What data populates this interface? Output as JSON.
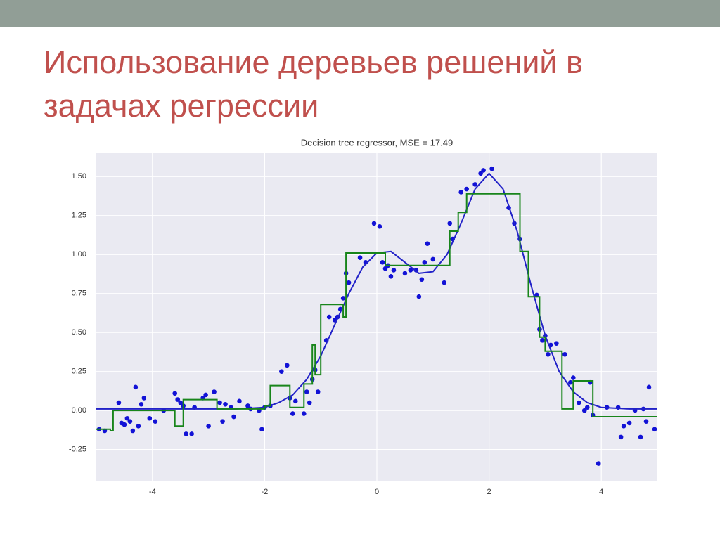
{
  "slide": {
    "title": "Использование деревьев решений в задачах регрессии"
  },
  "chart_data": {
    "type": "scatter",
    "title": "Decision tree regressor, MSE = 17.49",
    "xlim": [
      -5,
      5
    ],
    "ylim": [
      -0.45,
      1.65
    ],
    "xticks": [
      -4,
      -2,
      0,
      2,
      4
    ],
    "yticks": [
      -0.25,
      {
        "value": 0,
        "label": "0.00"
      },
      0.25,
      {
        "value": 0.5,
        "label": "0.50"
      },
      0.75,
      {
        "value": 1,
        "label": "1.00"
      },
      1.25,
      {
        "value": 1.5,
        "label": "1.50"
      }
    ],
    "grid": true,
    "background": "#eaeaf2",
    "series": [
      {
        "type": "scatter",
        "color": "#1212d6",
        "x": [
          -4.95,
          -4.85,
          -4.6,
          -4.55,
          -4.5,
          -4.45,
          -4.4,
          -4.35,
          -4.3,
          -4.25,
          -4.2,
          -4.15,
          -4.05,
          -3.95,
          -3.8,
          -3.6,
          -3.55,
          -3.5,
          -3.45,
          -3.4,
          -3.3,
          -3.25,
          -3.1,
          -3.05,
          -3.0,
          -2.9,
          -2.8,
          -2.75,
          -2.7,
          -2.6,
          -2.55,
          -2.45,
          -2.3,
          -2.25,
          -2.1,
          -2.05,
          -2.0,
          -1.9,
          -1.7,
          -1.6,
          -1.55,
          -1.5,
          -1.45,
          -1.3,
          -1.25,
          -1.2,
          -1.15,
          -1.1,
          -1.05,
          -0.9,
          -0.85,
          -0.75,
          -0.7,
          -0.65,
          -0.6,
          -0.55,
          -0.5,
          -0.3,
          -0.2,
          -0.05,
          0.05,
          0.1,
          0.15,
          0.2,
          0.25,
          0.3,
          0.5,
          0.6,
          0.7,
          0.75,
          0.8,
          0.85,
          0.9,
          1.0,
          1.2,
          1.3,
          1.35,
          1.5,
          1.6,
          1.75,
          1.85,
          1.9,
          2.05,
          2.35,
          2.45,
          2.55,
          2.85,
          2.9,
          2.95,
          3.0,
          3.05,
          3.1,
          3.2,
          3.35,
          3.45,
          3.5,
          3.6,
          3.7,
          3.75,
          3.8,
          3.85,
          3.95,
          4.1,
          4.3,
          4.35,
          4.4,
          4.5,
          4.6,
          4.7,
          4.75,
          4.8,
          4.85,
          4.95
        ],
        "y": [
          -0.12,
          -0.13,
          0.05,
          -0.08,
          -0.09,
          -0.05,
          -0.07,
          -0.13,
          0.15,
          -0.1,
          0.04,
          0.08,
          -0.05,
          -0.07,
          0.0,
          0.11,
          0.07,
          0.05,
          0.03,
          -0.15,
          -0.15,
          0.02,
          0.08,
          0.1,
          -0.1,
          0.12,
          0.05,
          -0.07,
          0.04,
          0.02,
          -0.04,
          0.06,
          0.03,
          0.01,
          0.0,
          -0.12,
          0.02,
          0.03,
          0.25,
          0.29,
          0.08,
          -0.02,
          0.06,
          -0.02,
          0.12,
          0.05,
          0.2,
          0.26,
          0.12,
          0.45,
          0.6,
          0.58,
          0.6,
          0.65,
          0.72,
          0.88,
          0.82,
          0.98,
          0.95,
          1.2,
          1.18,
          0.95,
          0.91,
          0.93,
          0.86,
          0.9,
          0.88,
          0.9,
          0.9,
          0.73,
          0.84,
          0.95,
          1.07,
          0.97,
          0.82,
          1.2,
          1.1,
          1.4,
          1.42,
          1.45,
          1.52,
          1.54,
          1.55,
          1.3,
          1.2,
          1.1,
          0.74,
          0.52,
          0.45,
          0.48,
          0.36,
          0.42,
          0.43,
          0.36,
          0.18,
          0.21,
          0.05,
          0.0,
          0.02,
          0.18,
          -0.03,
          -0.34,
          0.02,
          0.02,
          -0.17,
          -0.1,
          -0.08,
          0.0,
          -0.17,
          0.01,
          -0.07,
          0.15,
          -0.12
        ]
      },
      {
        "type": "line",
        "color": "#2222c8",
        "x": [
          -5,
          -4.5,
          -4,
          -3.5,
          -3,
          -2.5,
          -2,
          -1.75,
          -1.5,
          -1.25,
          -1,
          -0.75,
          -0.5,
          -0.25,
          0,
          0.25,
          0.5,
          0.75,
          1,
          1.25,
          1.5,
          1.75,
          2,
          2.25,
          2.5,
          2.75,
          3,
          3.25,
          3.5,
          3.75,
          4,
          4.5,
          5
        ],
        "y": [
          0.01,
          0.01,
          0.01,
          0.01,
          0.01,
          0.01,
          0.02,
          0.05,
          0.1,
          0.2,
          0.35,
          0.55,
          0.75,
          0.92,
          1.01,
          1.02,
          0.95,
          0.88,
          0.89,
          1.0,
          1.2,
          1.42,
          1.52,
          1.42,
          1.15,
          0.8,
          0.48,
          0.25,
          0.12,
          0.05,
          0.02,
          0.01,
          0.01
        ]
      },
      {
        "type": "line",
        "color": "#18851b",
        "x": [
          -5,
          -4.75,
          -4.75,
          -4.7,
          -4.7,
          -3.6,
          -3.6,
          -3.45,
          -3.45,
          -2.85,
          -2.85,
          -2.0,
          -2.0,
          -1.9,
          -1.9,
          -1.55,
          -1.55,
          -1.3,
          -1.3,
          -1.15,
          -1.15,
          -1.1,
          -1.1,
          -1.0,
          -1.0,
          -0.6,
          -0.6,
          -0.55,
          -0.55,
          0.15,
          0.15,
          1.3,
          1.3,
          1.45,
          1.45,
          1.6,
          1.6,
          2.55,
          2.55,
          2.7,
          2.7,
          2.9,
          2.9,
          3.0,
          3.0,
          3.3,
          3.3,
          3.5,
          3.5,
          3.85,
          3.85,
          5
        ],
        "y": [
          -0.12,
          -0.12,
          -0.13,
          -0.13,
          0.0,
          0.0,
          -0.1,
          -0.1,
          0.07,
          0.07,
          0.01,
          0.01,
          0.03,
          0.03,
          0.16,
          0.16,
          0.02,
          0.02,
          0.17,
          0.17,
          0.42,
          0.42,
          0.23,
          0.23,
          0.68,
          0.68,
          0.6,
          0.6,
          1.01,
          1.01,
          0.93,
          0.93,
          1.15,
          1.15,
          1.27,
          1.27,
          1.39,
          1.39,
          1.02,
          1.02,
          0.73,
          0.73,
          0.47,
          0.47,
          0.38,
          0.38,
          0.01,
          0.01,
          0.19,
          0.19,
          -0.04,
          -0.04
        ]
      }
    ]
  }
}
